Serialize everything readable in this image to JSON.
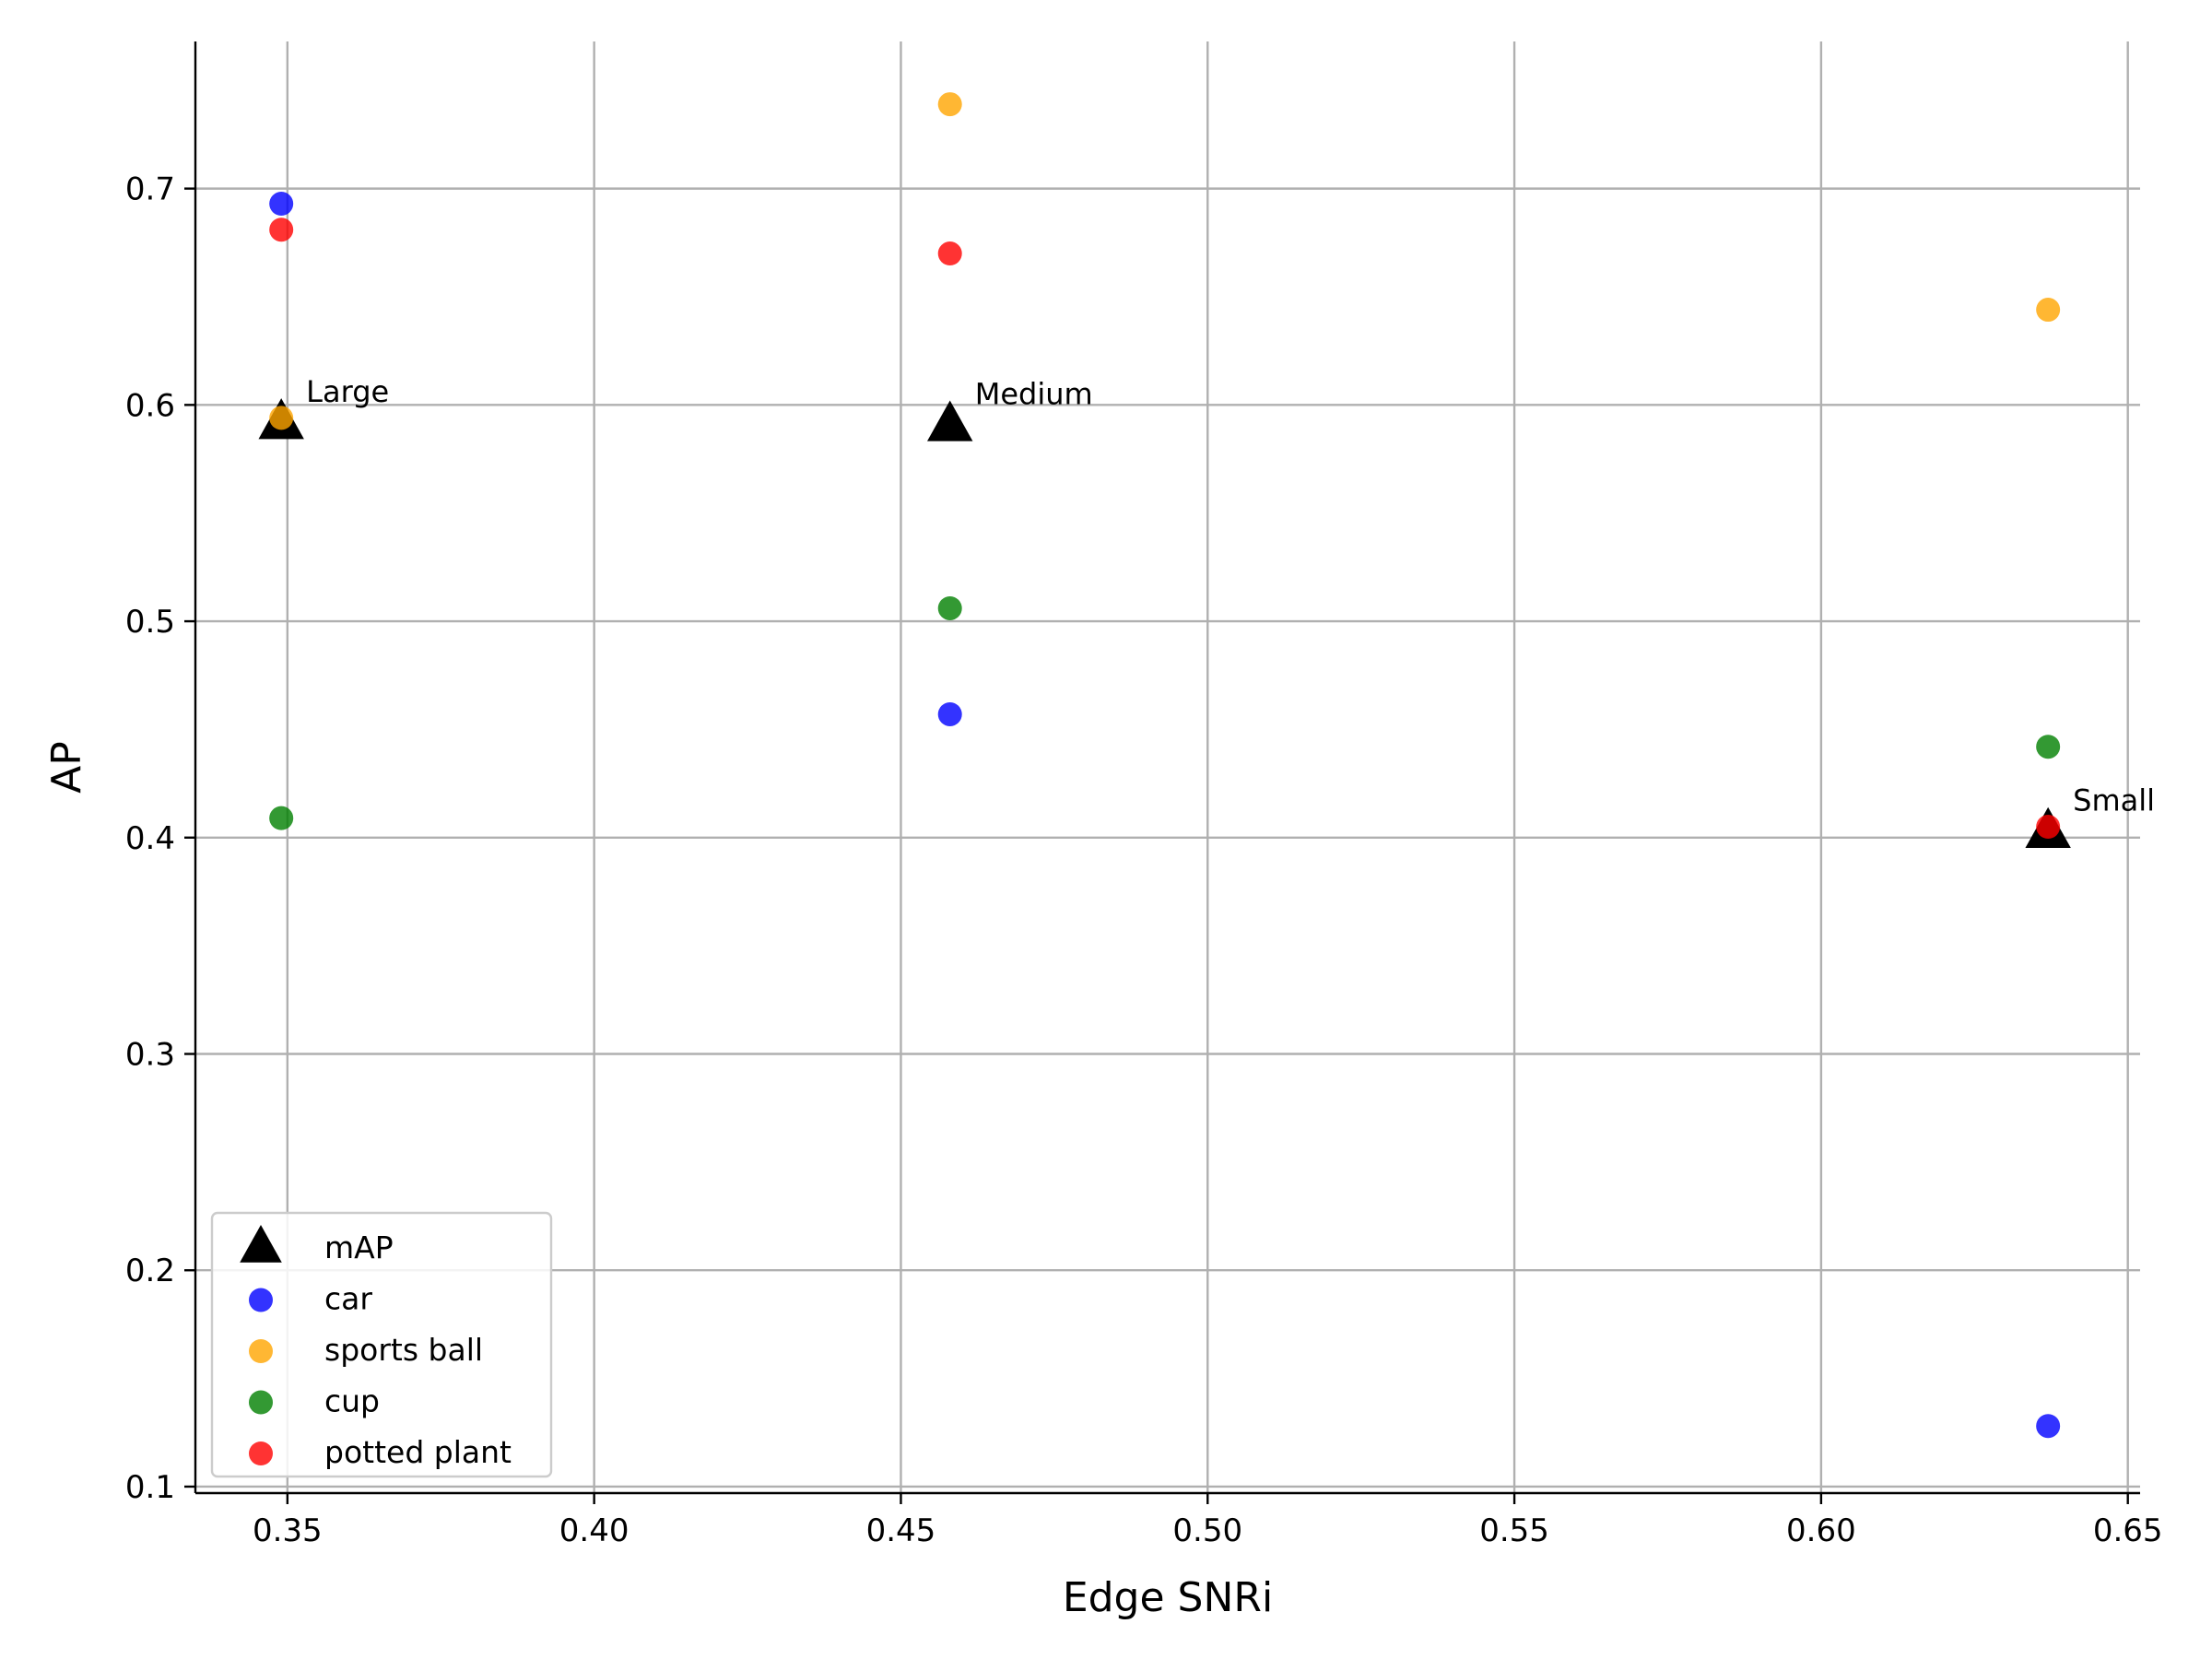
{
  "chart_data": {
    "type": "scatter",
    "xlabel": "Edge SNRi",
    "ylabel": "AP",
    "xlim": [
      0.335,
      0.652
    ],
    "ylim": [
      0.097,
      0.768
    ],
    "xticks": [
      "0.35",
      "0.40",
      "0.45",
      "0.50",
      "0.55",
      "0.60",
      "0.65"
    ],
    "yticks": [
      "0.1",
      "0.2",
      "0.3",
      "0.4",
      "0.5",
      "0.6",
      "0.7"
    ],
    "grid": true,
    "legend_position": "lower-left",
    "series": [
      {
        "name": "mAP",
        "marker": "triangle",
        "color": "#000000",
        "points": [
          {
            "x": 0.349,
            "y": 0.592,
            "label": "Large"
          },
          {
            "x": 0.458,
            "y": 0.591,
            "label": "Medium"
          },
          {
            "x": 0.637,
            "y": 0.403,
            "label": "Small"
          }
        ]
      },
      {
        "name": "car",
        "marker": "circle",
        "color": "#0000ff",
        "points": [
          {
            "x": 0.349,
            "y": 0.693
          },
          {
            "x": 0.458,
            "y": 0.457
          },
          {
            "x": 0.637,
            "y": 0.128
          }
        ]
      },
      {
        "name": "sports ball",
        "marker": "circle",
        "color": "#ffa500",
        "points": [
          {
            "x": 0.349,
            "y": 0.594
          },
          {
            "x": 0.458,
            "y": 0.739
          },
          {
            "x": 0.637,
            "y": 0.644
          }
        ]
      },
      {
        "name": "cup",
        "marker": "circle",
        "color": "#008000",
        "points": [
          {
            "x": 0.349,
            "y": 0.409
          },
          {
            "x": 0.458,
            "y": 0.506
          },
          {
            "x": 0.637,
            "y": 0.442
          }
        ]
      },
      {
        "name": "potted plant",
        "marker": "circle",
        "color": "#ff0000",
        "points": [
          {
            "x": 0.349,
            "y": 0.681
          },
          {
            "x": 0.458,
            "y": 0.67
          },
          {
            "x": 0.637,
            "y": 0.405
          }
        ]
      }
    ]
  }
}
